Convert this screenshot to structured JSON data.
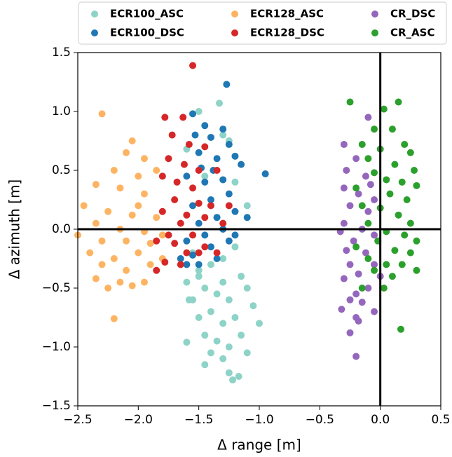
{
  "chart_data": {
    "type": "scatter",
    "x_label": "Δ range [m]",
    "y_label": "Δ azimuth [m]",
    "xlim": [
      -2.5,
      0.5
    ],
    "ylim": [
      -1.5,
      1.5
    ],
    "xticks": [
      {
        "value": -2.5,
        "label": "−2.5"
      },
      {
        "value": -2.0,
        "label": "−2.0"
      },
      {
        "value": -1.5,
        "label": "−1.5"
      },
      {
        "value": -1.0,
        "label": "−1.0"
      },
      {
        "value": -0.5,
        "label": "−0.5"
      },
      {
        "value": 0,
        "label": "0.0"
      },
      0.5
    ],
    "yticks": [
      {
        "value": -1.5,
        "label": "−1.5"
      },
      {
        "value": -1.0,
        "label": "−1.0"
      },
      {
        "value": -0.5,
        "label": "−0.5"
      },
      {
        "value": 0,
        "label": "0.0"
      },
      0.5,
      {
        "value": 1,
        "label": "1.0"
      },
      1.5
    ],
    "legend_position": "top",
    "series": [
      {
        "name": "ECR100_ASC",
        "color": "#8dd3c7",
        "x": [
          -1.5,
          -1.33,
          -1.6,
          -1.3,
          -1.25,
          -1.45,
          -1.2,
          -1.1,
          -1.35,
          -1.55,
          -1.5,
          -1.4,
          -1.3,
          -1.2,
          -1.15,
          -1.45,
          -1.6,
          -1.55,
          -1.35,
          -1.25,
          -1.1,
          -1.4,
          -1.5,
          -1.3,
          -1.2,
          -1.05,
          -1.0,
          -1.45,
          -1.6,
          -1.35,
          -1.15,
          -1.25,
          -1.4,
          -1.1,
          -1.45,
          -1.3,
          -1.25,
          -1.22,
          -1.17,
          -1.5,
          -1.3,
          -1.58
        ],
        "values": [
          1.0,
          1.07,
          0.68,
          0.8,
          0.75,
          0.45,
          0.4,
          0.2,
          0.1,
          -0.2,
          -0.35,
          -0.3,
          -0.25,
          -0.15,
          -0.4,
          -0.5,
          -0.45,
          -0.6,
          -0.55,
          -0.6,
          -0.5,
          -0.7,
          -0.75,
          -0.8,
          -0.75,
          -0.65,
          -0.8,
          -0.9,
          -0.96,
          -0.95,
          -0.9,
          -1.0,
          -1.05,
          -1.05,
          -1.15,
          -1.1,
          -1.22,
          -1.28,
          -1.25,
          -0.4,
          -0.45,
          -0.6
        ]
      },
      {
        "name": "ECR100_DSC",
        "color": "#1f77b4",
        "x": [
          -1.27,
          -1.55,
          -1.45,
          -1.3,
          -1.53,
          -1.4,
          -1.25,
          -1.5,
          -1.35,
          -1.2,
          -1.15,
          -0.95,
          -1.6,
          -1.45,
          -1.3,
          -1.25,
          -1.4,
          -1.55,
          -1.2,
          -1.35,
          -1.5,
          -1.3,
          -1.45,
          -1.6,
          -1.25,
          -1.4,
          -1.55,
          -1.65,
          -1.35,
          -1.5,
          -1.6,
          -1.2,
          -1.1,
          -1.38,
          -1.48
        ],
        "values": [
          1.23,
          0.98,
          0.88,
          0.85,
          0.8,
          0.78,
          0.72,
          0.65,
          0.6,
          0.62,
          0.55,
          0.47,
          0.45,
          0.4,
          0.42,
          0.3,
          0.25,
          0.2,
          0.15,
          0.1,
          0.05,
          0.0,
          -0.05,
          -0.1,
          -0.1,
          -0.15,
          -0.22,
          -0.25,
          -0.25,
          -0.3,
          -0.3,
          -0.05,
          0.1,
          0.5,
          0.52
        ]
      },
      {
        "name": "ECR128_ASC",
        "color": "#fdb462",
        "x": [
          -2.3,
          -2.05,
          -2.1,
          -1.95,
          -2.2,
          -2.0,
          -1.85,
          -2.35,
          -2.15,
          -1.95,
          -2.45,
          -2.25,
          -2.05,
          -1.85,
          -2.35,
          -2.15,
          -1.95,
          -2.5,
          -2.3,
          -2.1,
          -1.9,
          -2.4,
          -2.2,
          -2.0,
          -1.8,
          -2.3,
          -2.1,
          -1.9,
          -2.35,
          -2.15,
          -1.95,
          -2.25,
          -2.05,
          -2.2,
          -1.8,
          -2.0
        ],
        "values": [
          0.98,
          0.75,
          0.65,
          0.6,
          0.5,
          0.45,
          0.5,
          0.38,
          0.35,
          0.3,
          0.2,
          0.15,
          0.12,
          0.1,
          0.05,
          0.0,
          -0.02,
          -0.05,
          -0.1,
          -0.1,
          -0.12,
          -0.2,
          -0.25,
          -0.2,
          -0.25,
          -0.3,
          -0.35,
          -0.3,
          -0.42,
          -0.45,
          -0.45,
          -0.5,
          -0.48,
          -0.76,
          -0.05,
          0.2
        ]
      },
      {
        "name": "ECR128_DSC",
        "color": "#d62728",
        "x": [
          -1.55,
          -1.78,
          -1.63,
          -1.72,
          -1.58,
          -1.45,
          -1.75,
          -1.62,
          -1.5,
          -1.35,
          -1.8,
          -1.68,
          -1.55,
          -1.7,
          -1.5,
          -1.4,
          -1.25,
          -1.8,
          -1.6,
          -1.45,
          -1.65,
          -1.3,
          -1.75,
          -1.55,
          -1.85,
          -1.7,
          -1.45,
          -1.6,
          -1.78,
          -1.5,
          -1.35,
          -1.65,
          -1.85
        ],
        "values": [
          1.39,
          0.95,
          0.95,
          0.8,
          0.72,
          0.7,
          0.6,
          0.55,
          0.5,
          0.5,
          0.45,
          0.4,
          0.35,
          0.25,
          0.22,
          0.2,
          0.2,
          0.15,
          0.12,
          0.1,
          0.05,
          0.05,
          -0.05,
          -0.05,
          -0.1,
          -0.12,
          -0.15,
          -0.2,
          -0.28,
          -0.2,
          -0.2,
          -0.3,
          -0.35
        ]
      },
      {
        "name": "CR_DSC",
        "color": "#9467bd",
        "x": [
          -0.1,
          -0.3,
          -0.2,
          -0.28,
          -0.12,
          -0.3,
          -0.18,
          -0.05,
          -0.25,
          -0.1,
          -0.3,
          -0.15,
          -0.33,
          -0.05,
          -0.22,
          -0.28,
          -0.12,
          -0.25,
          -0.05,
          -0.18,
          -0.3,
          -0.1,
          -0.2,
          -0.25,
          -0.15,
          -0.32,
          -0.05,
          -0.18,
          -0.2,
          -0.25,
          -0.2,
          0.0,
          -0.08
        ],
        "values": [
          0.95,
          0.72,
          0.6,
          0.5,
          0.45,
          0.35,
          0.3,
          0.25,
          0.2,
          0.15,
          0.05,
          0.0,
          -0.02,
          -0.05,
          -0.1,
          -0.18,
          -0.2,
          -0.3,
          -0.3,
          -0.38,
          -0.42,
          -0.5,
          -0.55,
          -0.6,
          -0.62,
          -0.68,
          -0.7,
          -0.78,
          -0.75,
          -0.88,
          -1.08,
          -0.4,
          0.38
        ]
      },
      {
        "name": "CR_ASC",
        "color": "#2ca02c",
        "x": [
          -0.25,
          0.15,
          0.03,
          -0.05,
          0.1,
          -0.15,
          0.2,
          0.25,
          0.0,
          -0.1,
          0.12,
          0.28,
          -0.05,
          0.05,
          0.18,
          0.3,
          -0.2,
          0.08,
          0.22,
          -0.15,
          0.0,
          0.15,
          0.25,
          -0.1,
          0.05,
          0.2,
          0.3,
          -0.2,
          -0.02,
          0.12,
          0.25,
          -0.1,
          0.05,
          0.18,
          -0.05,
          0.1,
          0.3,
          -0.15,
          0.03,
          0.17
        ],
        "values": [
          1.08,
          1.08,
          1.02,
          0.85,
          0.85,
          0.72,
          0.72,
          0.65,
          0.68,
          0.6,
          0.55,
          0.5,
          0.48,
          0.42,
          0.4,
          0.37,
          0.35,
          0.3,
          0.25,
          0.2,
          0.18,
          0.12,
          0.05,
          0.05,
          -0.02,
          -0.05,
          -0.1,
          -0.15,
          -0.1,
          -0.18,
          -0.2,
          -0.25,
          -0.3,
          -0.3,
          -0.35,
          -0.4,
          -0.35,
          -0.5,
          -0.5,
          -0.85
        ]
      }
    ]
  }
}
